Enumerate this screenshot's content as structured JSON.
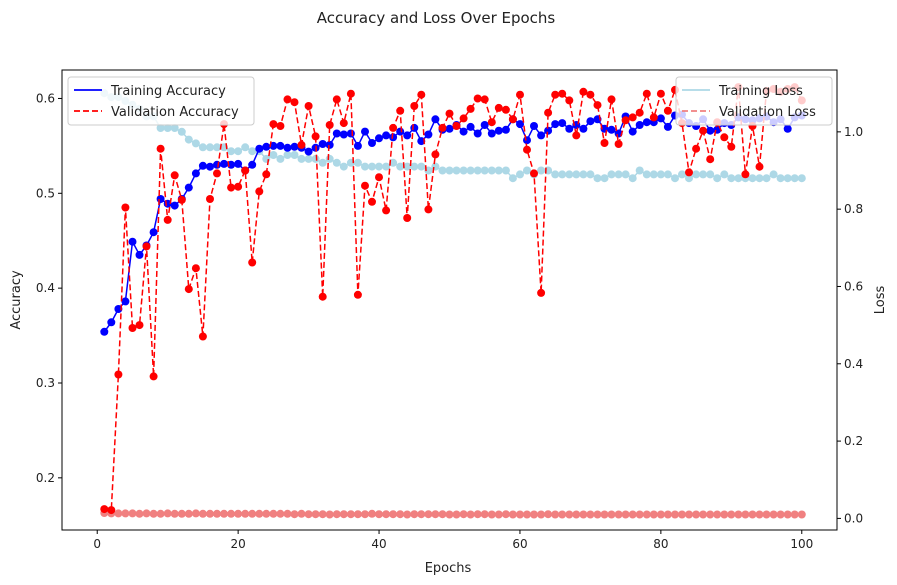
{
  "chart_data": {
    "type": "line",
    "title": "Accuracy and Loss Over Epochs",
    "xlabel": "Epochs",
    "ylabel_left": "Accuracy",
    "ylabel_right": "Loss",
    "xlim": [
      -5,
      105
    ],
    "ylim_left": [
      0.145,
      0.63
    ],
    "ylim_right": [
      -0.03,
      1.16
    ],
    "x_ticks": [
      0,
      20,
      40,
      60,
      80,
      100
    ],
    "y_ticks_left": [
      0.2,
      0.3,
      0.4,
      0.5,
      0.6
    ],
    "y_ticks_right": [
      0.0,
      0.2,
      0.4,
      0.6,
      0.8,
      1.0
    ],
    "grid": false,
    "legend_left": "top-left",
    "legend_right": "top-right",
    "x": [
      1,
      2,
      3,
      4,
      5,
      6,
      7,
      8,
      9,
      10,
      11,
      12,
      13,
      14,
      15,
      16,
      17,
      18,
      19,
      20,
      21,
      22,
      23,
      24,
      25,
      26,
      27,
      28,
      29,
      30,
      31,
      32,
      33,
      34,
      35,
      36,
      37,
      38,
      39,
      40,
      41,
      42,
      43,
      44,
      45,
      46,
      47,
      48,
      49,
      50,
      51,
      52,
      53,
      54,
      55,
      56,
      57,
      58,
      59,
      60,
      61,
      62,
      63,
      64,
      65,
      66,
      67,
      68,
      69,
      70,
      71,
      72,
      73,
      74,
      75,
      76,
      77,
      78,
      79,
      80,
      81,
      82,
      83,
      84,
      85,
      86,
      87,
      88,
      89,
      90,
      91,
      92,
      93,
      94,
      95,
      96,
      97,
      98,
      99,
      100
    ],
    "series": [
      {
        "name": "Training Accuracy",
        "axis": "left",
        "color": "#0000ff",
        "style": "solid",
        "values": [
          0.354,
          0.364,
          0.378,
          0.386,
          0.449,
          0.435,
          0.445,
          0.459,
          0.494,
          0.489,
          0.487,
          0.494,
          0.506,
          0.521,
          0.529,
          0.528,
          0.53,
          0.531,
          0.53,
          0.531,
          0.524,
          0.53,
          0.547,
          0.549,
          0.55,
          0.55,
          0.548,
          0.549,
          0.548,
          0.544,
          0.548,
          0.552,
          0.551,
          0.563,
          0.562,
          0.563,
          0.55,
          0.565,
          0.553,
          0.558,
          0.561,
          0.559,
          0.565,
          0.561,
          0.569,
          0.555,
          0.562,
          0.578,
          0.567,
          0.568,
          0.572,
          0.565,
          0.57,
          0.563,
          0.572,
          0.563,
          0.566,
          0.567,
          0.578,
          0.573,
          0.556,
          0.571,
          0.561,
          0.566,
          0.573,
          0.574,
          0.568,
          0.572,
          0.568,
          0.576,
          0.578,
          0.568,
          0.567,
          0.563,
          0.581,
          0.565,
          0.572,
          0.575,
          0.575,
          0.579,
          0.57,
          0.582,
          0.583,
          0.574,
          0.571,
          0.578,
          0.566,
          0.567,
          0.574,
          0.572,
          0.58,
          0.578,
          0.577,
          0.579,
          0.581,
          0.575,
          0.578,
          0.568,
          0.58,
          0.582
        ]
      },
      {
        "name": "Validation Accuracy",
        "axis": "left",
        "color": "#ff0000",
        "style": "dashed",
        "values": [
          0.167,
          0.166,
          0.309,
          0.485,
          0.358,
          0.361,
          0.444,
          0.307,
          0.547,
          0.472,
          0.519,
          0.493,
          0.399,
          0.421,
          0.349,
          0.494,
          0.521,
          0.573,
          0.506,
          0.507,
          0.524,
          0.427,
          0.502,
          0.52,
          0.573,
          0.571,
          0.599,
          0.596,
          0.551,
          0.592,
          0.56,
          0.391,
          0.572,
          0.599,
          0.574,
          0.605,
          0.393,
          0.508,
          0.491,
          0.517,
          0.482,
          0.569,
          0.587,
          0.474,
          0.592,
          0.604,
          0.483,
          0.541,
          0.569,
          0.584,
          0.571,
          0.579,
          0.589,
          0.6,
          0.599,
          0.575,
          0.59,
          0.588,
          0.578,
          0.604,
          0.546,
          0.521,
          0.395,
          0.585,
          0.604,
          0.605,
          0.598,
          0.561,
          0.607,
          0.604,
          0.593,
          0.553,
          0.599,
          0.552,
          0.577,
          0.58,
          0.585,
          0.605,
          0.58,
          0.605,
          0.587,
          0.609,
          0.574,
          0.522,
          0.547,
          0.566,
          0.536,
          0.575,
          0.559,
          0.549,
          0.612,
          0.52,
          0.571,
          0.528,
          0.608,
          0.61,
          0.607,
          0.61,
          0.612,
          0.598
        ]
      },
      {
        "name": "Training Loss",
        "axis": "right",
        "color": "#add8e6",
        "style": "solid",
        "values": [
          1.1,
          1.09,
          1.09,
          1.08,
          1.07,
          1.06,
          1.04,
          1.04,
          1.01,
          1.01,
          1.01,
          1.0,
          0.98,
          0.97,
          0.96,
          0.96,
          0.96,
          0.96,
          0.95,
          0.95,
          0.96,
          0.95,
          0.95,
          0.93,
          0.94,
          0.93,
          0.94,
          0.94,
          0.93,
          0.93,
          0.93,
          0.92,
          0.93,
          0.92,
          0.91,
          0.92,
          0.92,
          0.91,
          0.91,
          0.91,
          0.91,
          0.92,
          0.91,
          0.91,
          0.91,
          0.91,
          0.9,
          0.91,
          0.9,
          0.9,
          0.9,
          0.9,
          0.9,
          0.9,
          0.9,
          0.9,
          0.9,
          0.9,
          0.88,
          0.89,
          0.9,
          0.89,
          0.9,
          0.9,
          0.89,
          0.89,
          0.89,
          0.89,
          0.89,
          0.89,
          0.88,
          0.88,
          0.89,
          0.89,
          0.89,
          0.88,
          0.9,
          0.89,
          0.89,
          0.89,
          0.89,
          0.88,
          0.89,
          0.88,
          0.89,
          0.89,
          0.89,
          0.88,
          0.89,
          0.88,
          0.88,
          0.88,
          0.88,
          0.88,
          0.88,
          0.89,
          0.88,
          0.88,
          0.88,
          0.88
        ]
      },
      {
        "name": "Validation Loss",
        "axis": "right",
        "color": "#f08080",
        "style": "dashed",
        "values": [
          0.014,
          0.013,
          0.013,
          0.013,
          0.013,
          0.012,
          0.013,
          0.012,
          0.012,
          0.013,
          0.012,
          0.012,
          0.012,
          0.013,
          0.012,
          0.012,
          0.012,
          0.012,
          0.012,
          0.012,
          0.012,
          0.012,
          0.012,
          0.012,
          0.012,
          0.012,
          0.012,
          0.011,
          0.012,
          0.011,
          0.011,
          0.011,
          0.01,
          0.011,
          0.011,
          0.011,
          0.011,
          0.011,
          0.012,
          0.011,
          0.011,
          0.011,
          0.011,
          0.01,
          0.011,
          0.011,
          0.011,
          0.011,
          0.011,
          0.01,
          0.01,
          0.011,
          0.01,
          0.011,
          0.011,
          0.01,
          0.01,
          0.011,
          0.01,
          0.01,
          0.01,
          0.01,
          0.01,
          0.011,
          0.01,
          0.01,
          0.01,
          0.01,
          0.01,
          0.01,
          0.01,
          0.01,
          0.01,
          0.01,
          0.01,
          0.01,
          0.01,
          0.01,
          0.01,
          0.01,
          0.01,
          0.01,
          0.01,
          0.01,
          0.01,
          0.01,
          0.01,
          0.01,
          0.01,
          0.01,
          0.01,
          0.01,
          0.01,
          0.01,
          0.01,
          0.01,
          0.01,
          0.01,
          0.01,
          0.01
        ]
      }
    ]
  }
}
